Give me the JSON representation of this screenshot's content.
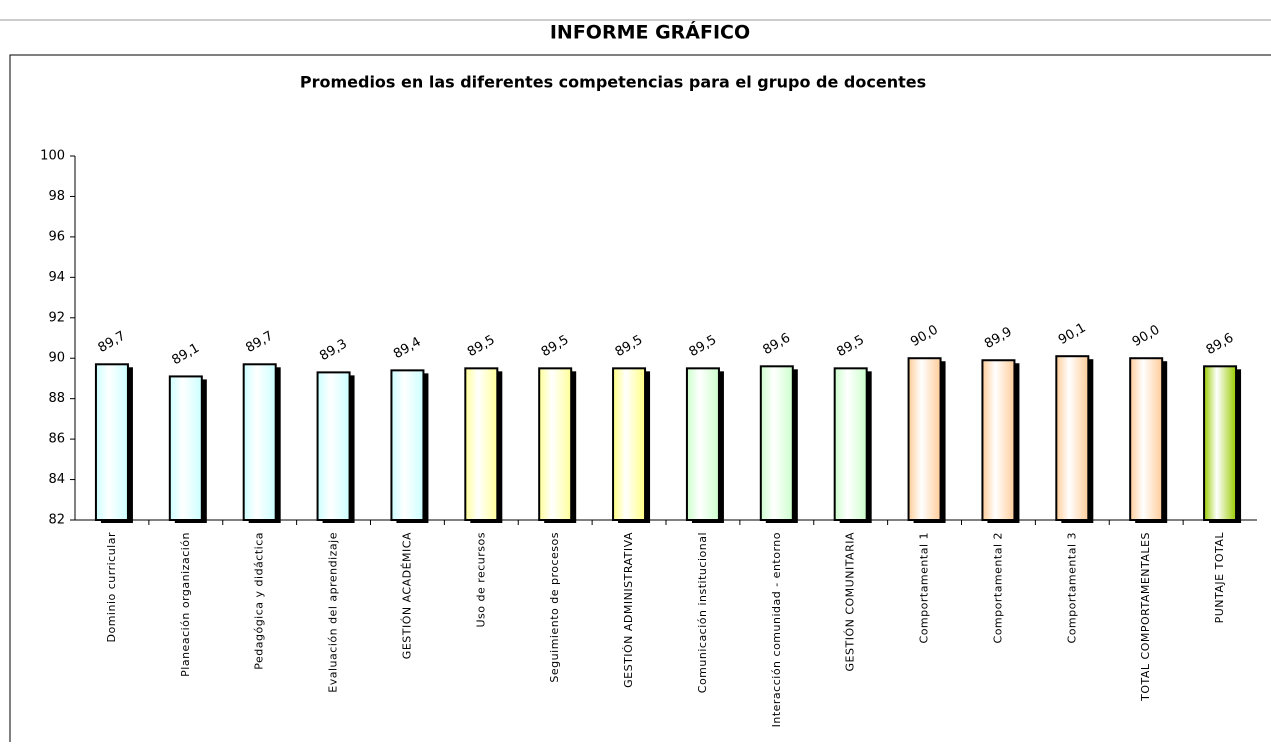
{
  "header": {
    "title": "INFORME GRÁFICO"
  },
  "chart_data": {
    "type": "bar",
    "title": "Promedios en las diferentes competencias para el grupo de docentes",
    "categories": [
      "Dominio curricular",
      "Planeación organización",
      "Pedagógica y didáctica",
      "Evaluación del aprendizaje",
      "GESTIÓN ACADÉMICA",
      "Uso de recursos",
      "Seguimiento de procesos",
      "GESTIÓN ADMINISTRATIVA",
      "Comunicación institucional",
      "Interacción comunidad - entorno",
      "GESTIÓN COMUNITARIA",
      "Comportamental 1",
      "Comportamental 2",
      "Comportamental 3",
      "TOTAL COMPORTAMENTALES",
      "PUNTAJE TOTAL"
    ],
    "values": [
      89.7,
      89.1,
      89.7,
      89.3,
      89.4,
      89.5,
      89.5,
      89.5,
      89.5,
      89.6,
      89.5,
      90.0,
      89.9,
      90.1,
      90.0,
      89.6
    ],
    "value_labels": [
      "89,7",
      "89,1",
      "89,7",
      "89,3",
      "89,4",
      "89,5",
      "89,5",
      "89,5",
      "89,5",
      "89,6",
      "89,5",
      "90,0",
      "89,9",
      "90,1",
      "90,0",
      "89,6"
    ],
    "colors": [
      "#ccffff",
      "#ccffff",
      "#ccffff",
      "#ccffff",
      "#ccffff",
      "#ffff99",
      "#ffff99",
      "#ffff80",
      "#ccffcc",
      "#ccffcc",
      "#ccffcc",
      "#ffcc99",
      "#ffcc99",
      "#ffcc99",
      "#ffcc99",
      "#99cc00"
    ],
    "ylim": [
      82,
      100
    ],
    "yticks": [
      82,
      84,
      86,
      88,
      90,
      92,
      94,
      96,
      98,
      100
    ],
    "grid": false
  }
}
